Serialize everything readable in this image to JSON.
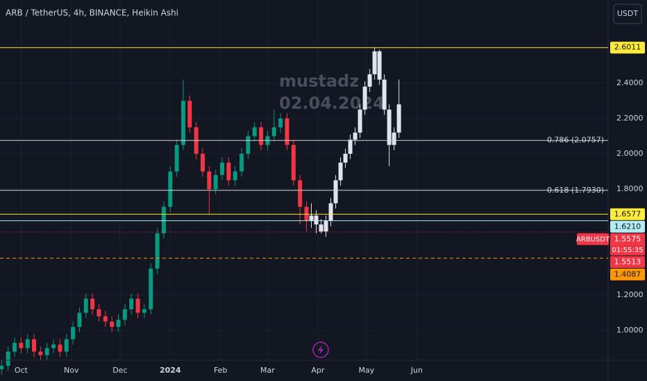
{
  "header": {
    "title": "ARB / TetherUS, 4h, BINANCE, Heikin Ashi",
    "currency_button": "USDT"
  },
  "watermark": [
    "mustadz",
    "02.04.2024"
  ],
  "chart_data": {
    "type": "candlestick",
    "grid": true,
    "up_color": "#089981",
    "down_color": "#f23645",
    "xlim": [
      -13,
      362
    ],
    "xticks": [
      {
        "value": 0,
        "label": "Oct"
      },
      {
        "value": 31,
        "label": "Nov"
      },
      {
        "value": 61,
        "label": "Dec"
      },
      {
        "value": 92,
        "label": "2024"
      },
      {
        "value": 123,
        "label": "Feb"
      },
      {
        "value": 152,
        "label": "Mar"
      },
      {
        "value": 183,
        "label": "Apr"
      },
      {
        "value": 213,
        "label": "May"
      },
      {
        "value": 244,
        "label": "Jun"
      }
    ],
    "ylim": [
      0.8314,
      2.8706
    ],
    "yticks": [
      {
        "value": 1.0,
        "label": "1.0000"
      },
      {
        "value": 1.2,
        "label": "1.2000"
      },
      {
        "value": 1.8,
        "label": "1.8000"
      },
      {
        "value": 2.0,
        "label": "2.0000"
      },
      {
        "value": 2.2,
        "label": "2.2000"
      },
      {
        "value": 2.4,
        "label": "2.4000"
      }
    ],
    "series": [
      {
        "x": [
          -12,
          -8,
          -4,
          0,
          4,
          8,
          12,
          16,
          20,
          24,
          28,
          32,
          36,
          40,
          44,
          48,
          52,
          56,
          60,
          64,
          68,
          72,
          76,
          80,
          84,
          88,
          92,
          96,
          100,
          104,
          108,
          112,
          116,
          120,
          124,
          128,
          132,
          136,
          140,
          144,
          148,
          152,
          156,
          160,
          164,
          168,
          172,
          176
        ],
        "open": [
          0.78,
          0.8,
          0.88,
          0.93,
          0.9,
          0.95,
          0.88,
          0.86,
          0.9,
          0.92,
          0.88,
          0.95,
          1.02,
          1.1,
          1.18,
          1.12,
          1.08,
          1.05,
          1.02,
          1.06,
          1.12,
          1.18,
          1.1,
          1.12,
          1.35,
          1.55,
          1.7,
          1.9,
          2.05,
          2.3,
          2.15,
          2.0,
          1.9,
          1.8,
          1.88,
          1.95,
          1.85,
          1.9,
          2.0,
          2.1,
          2.15,
          2.05,
          2.1,
          2.15,
          2.2,
          2.05,
          1.85,
          1.7
        ],
        "high": [
          0.83,
          0.91,
          0.96,
          0.96,
          0.98,
          0.98,
          0.91,
          0.93,
          0.95,
          0.95,
          0.98,
          1.05,
          1.13,
          1.21,
          1.21,
          1.15,
          1.11,
          1.08,
          1.09,
          1.15,
          1.21,
          1.21,
          1.15,
          1.38,
          1.58,
          1.73,
          1.93,
          2.08,
          2.42,
          2.33,
          2.18,
          2.03,
          1.93,
          1.91,
          1.98,
          1.98,
          1.93,
          2.03,
          2.13,
          2.18,
          2.18,
          2.13,
          2.25,
          2.23,
          2.23,
          2.08,
          1.88,
          1.73
        ],
        "low": [
          0.75,
          0.77,
          0.85,
          0.87,
          0.87,
          0.85,
          0.83,
          0.83,
          0.87,
          0.85,
          0.85,
          0.92,
          0.99,
          1.07,
          1.09,
          1.05,
          1.02,
          0.99,
          0.99,
          1.03,
          1.09,
          1.07,
          1.07,
          1.09,
          1.32,
          1.52,
          1.67,
          1.87,
          2.02,
          2.12,
          1.97,
          1.87,
          1.66,
          1.77,
          1.85,
          1.82,
          1.82,
          1.87,
          1.97,
          2.07,
          2.02,
          2.02,
          2.07,
          2.12,
          2.02,
          1.82,
          1.6,
          1.56
        ],
        "close": [
          0.8,
          0.88,
          0.93,
          0.9,
          0.95,
          0.88,
          0.86,
          0.9,
          0.92,
          0.88,
          0.95,
          1.02,
          1.1,
          1.18,
          1.12,
          1.08,
          1.05,
          1.02,
          1.06,
          1.12,
          1.18,
          1.1,
          1.12,
          1.35,
          1.55,
          1.7,
          1.9,
          2.05,
          2.3,
          2.15,
          2.0,
          1.9,
          1.8,
          1.88,
          1.95,
          1.85,
          1.9,
          2.0,
          2.1,
          2.15,
          2.05,
          2.1,
          2.15,
          2.2,
          2.05,
          1.85,
          1.7,
          1.62
        ]
      },
      {
        "color": "#e0e3eb",
        "x": [
          179,
          182,
          185,
          188,
          191,
          194,
          197,
          200,
          203,
          206,
          209,
          212,
          215,
          218,
          221,
          224,
          227,
          230,
          233
        ],
        "open": [
          1.62,
          1.65,
          1.6,
          1.56,
          1.62,
          1.72,
          1.85,
          1.95,
          2.0,
          2.08,
          2.12,
          2.25,
          2.38,
          2.45,
          2.58,
          2.42,
          2.25,
          2.05,
          2.12
        ],
        "high": [
          1.72,
          1.68,
          1.63,
          1.65,
          1.75,
          1.88,
          1.98,
          2.03,
          2.11,
          2.15,
          2.28,
          2.41,
          2.48,
          2.6011,
          2.59,
          2.45,
          2.28,
          2.15,
          2.42
        ],
        "low": [
          1.58,
          1.55,
          1.55,
          1.53,
          1.59,
          1.69,
          1.82,
          1.92,
          1.97,
          2.05,
          2.09,
          2.22,
          2.35,
          2.42,
          2.39,
          2.22,
          1.93,
          2.02,
          2.09
        ],
        "close": [
          1.65,
          1.6,
          1.56,
          1.62,
          1.72,
          1.85,
          1.95,
          2.0,
          2.08,
          2.12,
          2.25,
          2.38,
          2.45,
          2.58,
          2.42,
          2.25,
          2.05,
          2.12,
          2.28
        ]
      }
    ],
    "levels": [
      {
        "value": 2.6011,
        "label": "2.6011",
        "color": "#ffeb3b",
        "style": "solid",
        "place": "axis"
      },
      {
        "value": 2.0757,
        "label": "0.786 (2.0757)",
        "color": "#d1d4dc",
        "style": "solid",
        "place": "plot"
      },
      {
        "value": 1.793,
        "label": "0.618 (1.7930)",
        "color": "#d1d4dc",
        "style": "solid",
        "place": "plot"
      },
      {
        "value": 1.6577,
        "label": "1.6577",
        "color": "#ffeb3b",
        "style": "solid",
        "place": "axis"
      },
      {
        "value": 1.621,
        "label": "1.6210",
        "color": "#b2ebf2",
        "style": "solid",
        "place": "axis"
      },
      {
        "value": 1.5513,
        "label": "1.5513",
        "color": "#f23645",
        "style": "none",
        "place": "axis"
      },
      {
        "value": 1.4087,
        "label": "1.4087",
        "color": "#ff9800",
        "style": "dashed",
        "place": "axis"
      }
    ],
    "price": {
      "symbol": "ARBUSDT",
      "value": 1.5575,
      "label": "1.5575",
      "countdown": "01:55:35",
      "color": "#f23645"
    }
  }
}
